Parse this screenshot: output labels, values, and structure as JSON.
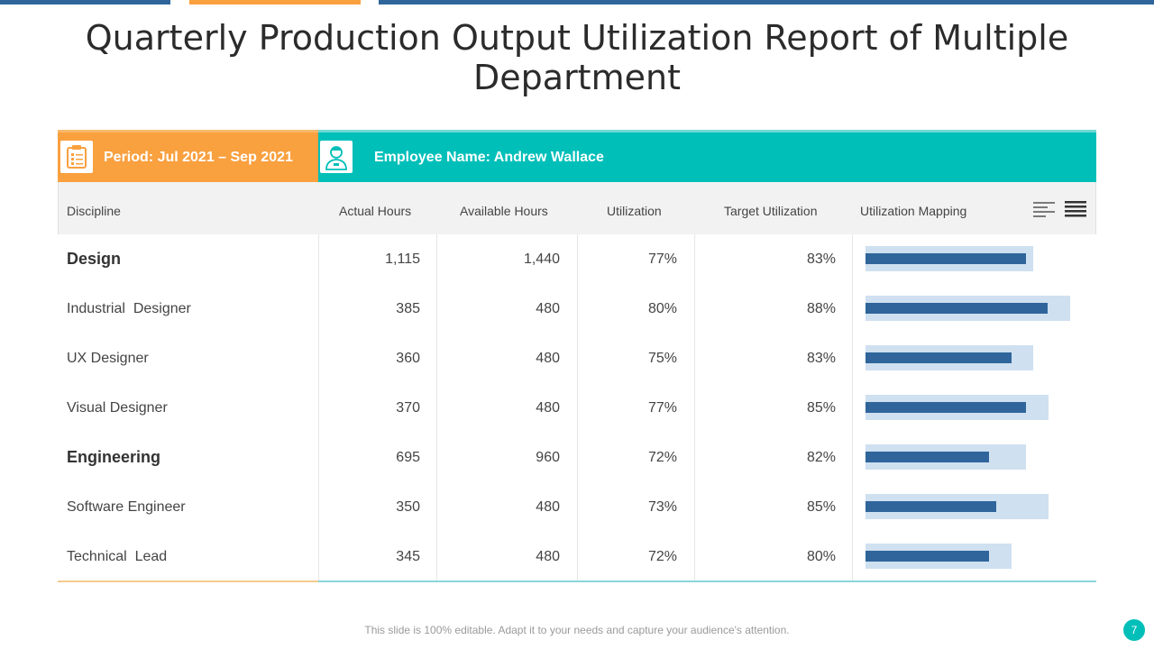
{
  "title": "Quarterly Production Output Utilization Report of Multiple Department",
  "header": {
    "period_label": "Period: Jul 2021 – Sep 2021",
    "employee_label": "Employee Name: Andrew Wallace",
    "period_icon": "clipboard-icon",
    "employee_icon": "person-icon"
  },
  "columns": [
    "Discipline",
    "Actual Hours",
    "Available Hours",
    "Utilization",
    "Target Utilization",
    "Utilization Mapping"
  ],
  "rows": [
    {
      "discipline": "Design",
      "actual": "1,115",
      "available": "1,440",
      "utilization": "77%",
      "target": "83%",
      "util": 77,
      "tgt": 83,
      "bold": true
    },
    {
      "discipline": "Industrial  Designer",
      "actual": "385",
      "available": "480",
      "utilization": "80%",
      "target": "88%",
      "util": 80,
      "tgt": 88,
      "bold": false
    },
    {
      "discipline": "UX Designer",
      "actual": "360",
      "available": "480",
      "utilization": "75%",
      "target": "83%",
      "util": 75,
      "tgt": 83,
      "bold": false
    },
    {
      "discipline": "Visual Designer",
      "actual": "370",
      "available": "480",
      "utilization": "77%",
      "target": "85%",
      "util": 77,
      "tgt": 85,
      "bold": false
    },
    {
      "discipline": "Engineering",
      "actual": "695",
      "available": "960",
      "utilization": "72%",
      "target": "82%",
      "util": 72,
      "tgt": 82,
      "bold": true
    },
    {
      "discipline": "Software Engineer",
      "actual": "350",
      "available": "480",
      "utilization": "73%",
      "target": "85%",
      "util": 73,
      "tgt": 85,
      "bold": false
    },
    {
      "discipline": "Technical  Lead",
      "actual": "345",
      "available": "480",
      "utilization": "72%",
      "target": "80%",
      "util": 72,
      "tgt": 80,
      "bold": false
    }
  ],
  "footer": "This slide is 100% editable. Adapt it to your needs and capture your audience's attention.",
  "page_number": "7",
  "colors": {
    "orange": "#f9a03f",
    "teal": "#00bfb9",
    "bar_dark": "#2f659b",
    "bar_light": "#cfe0f0"
  }
}
